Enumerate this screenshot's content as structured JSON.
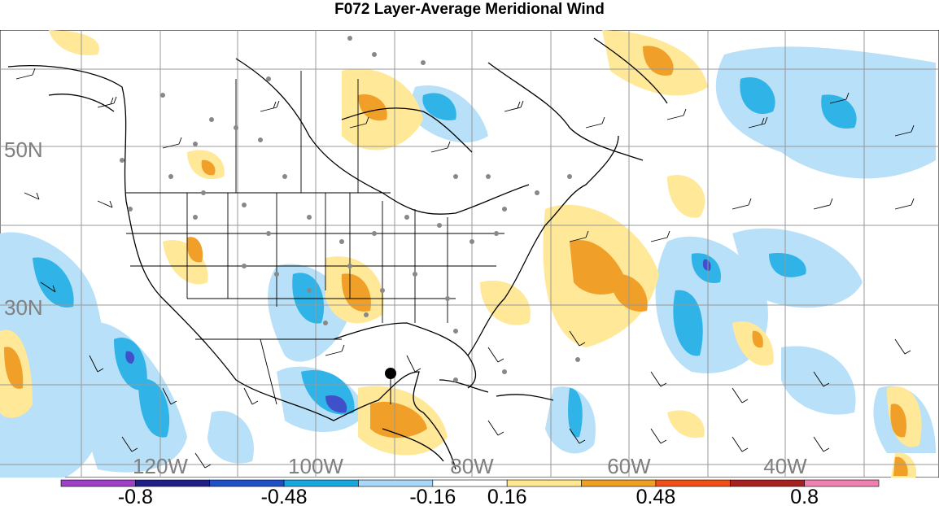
{
  "title": "F072 Layer-Average Meridional Wind",
  "lat_labels": [
    "50N",
    "30N"
  ],
  "lon_labels": [
    "120W",
    "100W",
    "80W",
    "60W",
    "40W"
  ],
  "colorbar": {
    "colors": [
      "#a040c8",
      "#20208a",
      "#2050c8",
      "#18a8e0",
      "#a8d8f8",
      "#ffffff",
      "#ffe890",
      "#f0a020",
      "#f05018",
      "#a82020",
      "#f080b0"
    ],
    "tick_labels": [
      "-0.8",
      "-0.48",
      "-0.16",
      "0.16",
      "0.48",
      "0.8"
    ]
  },
  "colors": {
    "land_line": "#000000",
    "grid": "#999999",
    "neg_light": "#b8e0f8",
    "neg_mid": "#30b4e8",
    "neg_strong": "#4050c8",
    "pos_light": "#ffe898",
    "pos_mid": "#f0a028",
    "stations": "#888888",
    "marker": "#000000"
  }
}
